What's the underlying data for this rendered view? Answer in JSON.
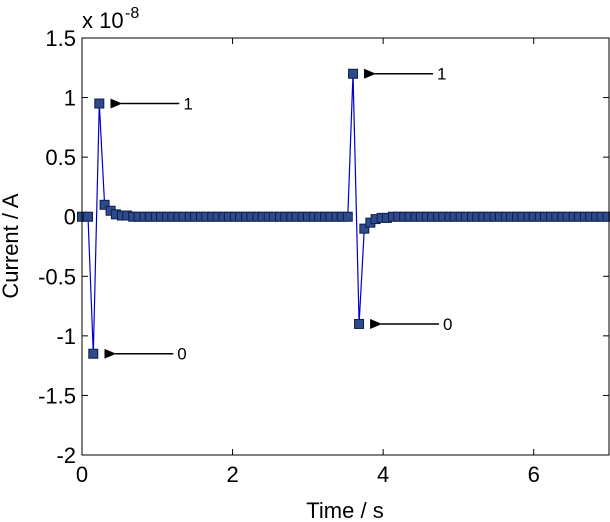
{
  "chart_data": {
    "type": "line",
    "title": "",
    "xlabel": "Time / s",
    "ylabel": "Current / A",
    "xlim": [
      0,
      7
    ],
    "ylim": [
      -2,
      1.5
    ],
    "y_multiplier_label": "x 10",
    "y_multiplier_exponent": "-8",
    "grid": false,
    "legend": "none",
    "xticks": [
      0,
      2,
      4,
      6
    ],
    "xtick_labels": [
      "0",
      "2",
      "4",
      "6"
    ],
    "yticks": [
      1.5,
      1,
      0.5,
      0,
      -0.5,
      -1,
      -1.5,
      -2
    ],
    "ytick_labels": [
      "1.5",
      "1",
      "0.5",
      "0",
      "-0.5",
      "-1",
      "-1.5",
      "-2"
    ],
    "colors": {
      "line": "#0000cc",
      "marker_fill": "#2e4a8a",
      "marker_edge": "#0d1f4a",
      "axis": "#000000"
    },
    "series": [
      {
        "x": [
          0.0,
          0.08,
          0.15,
          0.23,
          0.3,
          0.38,
          0.45,
          0.53,
          0.6,
          0.68,
          0.75,
          0.83,
          0.9,
          0.98,
          1.05,
          1.13,
          1.2,
          1.28,
          1.35,
          1.43,
          1.5,
          1.58,
          1.65,
          1.73,
          1.8,
          1.88,
          1.95,
          2.03,
          2.1,
          2.18,
          2.25,
          2.33,
          2.4,
          2.48,
          2.55,
          2.63,
          2.7,
          2.78,
          2.85,
          2.93,
          3.0,
          3.08,
          3.15,
          3.23,
          3.3,
          3.38,
          3.45,
          3.53,
          3.6,
          3.68,
          3.75,
          3.83,
          3.9,
          3.98,
          4.05,
          4.13,
          4.2,
          4.28,
          4.35,
          4.43,
          4.5,
          4.58,
          4.65,
          4.73,
          4.8,
          4.88,
          4.95,
          5.03,
          5.1,
          5.18,
          5.25,
          5.33,
          5.4,
          5.48,
          5.55,
          5.63,
          5.7,
          5.78,
          5.85,
          5.93,
          6.0,
          6.08,
          6.15,
          6.23,
          6.3,
          6.38,
          6.45,
          6.53,
          6.6,
          6.68,
          6.75,
          6.83,
          6.9,
          6.98
        ],
        "y": [
          0.0,
          0.0,
          -1.15,
          0.95,
          0.1,
          0.05,
          0.02,
          0.01,
          0.01,
          0.0,
          0.0,
          0.0,
          0.0,
          0.0,
          0.0,
          0.0,
          0.0,
          0.0,
          0.0,
          0.0,
          0.0,
          0.0,
          0.0,
          0.0,
          0.0,
          0.0,
          0.0,
          0.0,
          0.0,
          0.0,
          0.0,
          0.0,
          0.0,
          0.0,
          0.0,
          0.0,
          0.0,
          0.0,
          0.0,
          0.0,
          0.0,
          0.0,
          0.0,
          0.0,
          0.0,
          0.0,
          0.0,
          0.0,
          1.2,
          -0.9,
          -0.1,
          -0.05,
          -0.02,
          -0.01,
          -0.01,
          0.0,
          0.0,
          0.0,
          0.0,
          0.0,
          0.0,
          0.0,
          0.0,
          0.0,
          0.0,
          0.0,
          0.0,
          0.0,
          0.0,
          0.0,
          0.0,
          0.0,
          0.0,
          0.0,
          0.0,
          0.0,
          0.0,
          0.0,
          0.0,
          0.0,
          0.0,
          0.0,
          0.0,
          0.0,
          0.0,
          0.0,
          0.0,
          0.0,
          0.0,
          0.0,
          0.0,
          0.0,
          0.0,
          0.0
        ]
      }
    ],
    "annotations": [
      {
        "text": "1",
        "x": 0.23,
        "y": 0.95
      },
      {
        "text": "0",
        "x": 0.15,
        "y": -1.15
      },
      {
        "text": "1",
        "x": 3.6,
        "y": 1.2
      },
      {
        "text": "0",
        "x": 3.68,
        "y": -0.9
      }
    ]
  }
}
